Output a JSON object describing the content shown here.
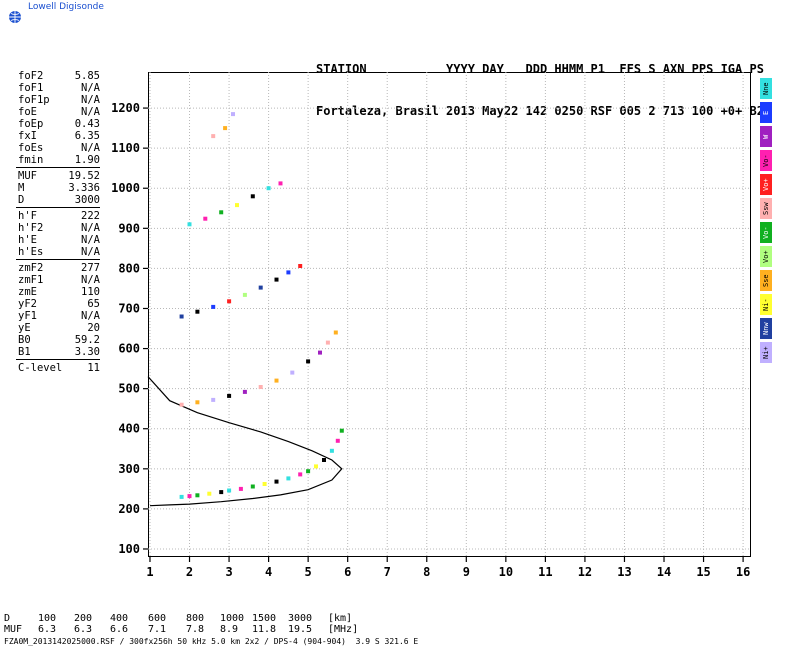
{
  "brand": {
    "name": "Lowell Digisonde",
    "icon": "globe-icon"
  },
  "header": {
    "labels": "STATION           YYYY DAY   DDD HHMM P1  FFS S AXN PPS IGA PS",
    "values": "Fortaleza, Brasil 2013 May22 142 0250 RSF 005 2 713 100 +0+ B2"
  },
  "params": [
    {
      "name": "foF2",
      "value": "5.85"
    },
    {
      "name": "foF1",
      "value": "N/A"
    },
    {
      "name": "foF1p",
      "value": "N/A"
    },
    {
      "name": "foE",
      "value": "N/A"
    },
    {
      "name": "foEp",
      "value": "0.43"
    },
    {
      "name": "fxI",
      "value": "6.35"
    },
    {
      "name": "foEs",
      "value": "N/A"
    },
    {
      "name": "fmin",
      "value": "1.90"
    },
    {
      "sep": true
    },
    {
      "name": "MUF",
      "value": "19.52"
    },
    {
      "name": "M",
      "value": "3.336"
    },
    {
      "name": "D",
      "value": "3000"
    },
    {
      "sep": true
    },
    {
      "name": "h'F",
      "value": "222"
    },
    {
      "name": "h'F2",
      "value": "N/A"
    },
    {
      "name": "h'E",
      "value": "N/A"
    },
    {
      "name": "h'Es",
      "value": "N/A"
    },
    {
      "sep": true
    },
    {
      "name": "zmF2",
      "value": "277"
    },
    {
      "name": "zmF1",
      "value": "N/A"
    },
    {
      "name": "zmE",
      "value": "110"
    },
    {
      "name": "yF2",
      "value": "65"
    },
    {
      "name": "yF1",
      "value": "N/A"
    },
    {
      "name": "yE",
      "value": "20"
    },
    {
      "name": "B0",
      "value": "59.2"
    },
    {
      "name": "B1",
      "value": "3.30"
    },
    {
      "sep": true
    },
    {
      "name": "C-level",
      "value": "11"
    }
  ],
  "legend": [
    {
      "label": "Nne",
      "color": "#33e0e0"
    },
    {
      "label": "E",
      "color": "#1c3cff"
    },
    {
      "label": "W",
      "color": "#a020c0"
    },
    {
      "label": "Vo-",
      "color": "#ff20b0"
    },
    {
      "label": "Vo+",
      "color": "#ff2020"
    },
    {
      "label": "Ssw",
      "color": "#ffb0b0"
    },
    {
      "label": "Vo-",
      "color": "#10b020"
    },
    {
      "label": "Vo+",
      "color": "#b0ff80"
    },
    {
      "label": "Sse",
      "color": "#ffb020"
    },
    {
      "label": "Ni-",
      "color": "#ffff30"
    },
    {
      "label": "Nnw",
      "color": "#2040a0"
    },
    {
      "label": "Ni+",
      "color": "#c0b0ff"
    }
  ],
  "footer": {
    "d_label": "D",
    "d_values": [
      "100",
      "200",
      "400",
      "600",
      "800",
      "1000",
      "1500",
      "3000",
      "[km]"
    ],
    "muf_label": "MUF",
    "muf_values": [
      "6.3",
      "6.3",
      "6.6",
      "7.1",
      "7.8",
      "8.9",
      "11.8",
      "19.5",
      "[MHz]"
    ],
    "file_line": "FZA0M_2013142025000.RSF / 300fx256h 50 kHz 5.0 km 2x2 / DPS-4 (904-904)  3.9 S 321.6 E"
  },
  "chart_data": {
    "type": "scatter",
    "title": "",
    "xlabel": "",
    "ylabel": "",
    "xlim": [
      0.95,
      16.2
    ],
    "ylim": [
      80,
      1290
    ],
    "x_ticks": [
      1,
      2,
      3,
      4,
      5,
      6,
      7,
      8,
      9,
      10,
      11,
      12,
      13,
      14,
      15,
      16
    ],
    "y_ticks": [
      100,
      200,
      300,
      400,
      500,
      600,
      700,
      800,
      900,
      1000,
      1100,
      1200
    ],
    "grid": true,
    "series": [
      {
        "values": [
          [
            1.8,
            230
          ],
          [
            2.0,
            232
          ],
          [
            2.2,
            234
          ],
          [
            2.5,
            238
          ],
          [
            2.8,
            242
          ],
          [
            3.0,
            246
          ],
          [
            3.3,
            250
          ],
          [
            3.6,
            256
          ],
          [
            3.9,
            262
          ],
          [
            4.2,
            268
          ],
          [
            4.5,
            276
          ],
          [
            4.8,
            286
          ],
          [
            5.0,
            294
          ],
          [
            5.2,
            306
          ],
          [
            5.4,
            322
          ],
          [
            5.6,
            345
          ],
          [
            5.75,
            370
          ],
          [
            5.85,
            395
          ]
        ]
      },
      {
        "values": [
          [
            1.8,
            460
          ],
          [
            2.2,
            466
          ],
          [
            2.6,
            472
          ],
          [
            3.0,
            482
          ],
          [
            3.4,
            492
          ],
          [
            3.8,
            504
          ],
          [
            4.2,
            520
          ],
          [
            4.6,
            540
          ],
          [
            5.0,
            568
          ],
          [
            5.3,
            590
          ],
          [
            5.5,
            615
          ],
          [
            5.7,
            640
          ]
        ]
      },
      {
        "values": [
          [
            1.8,
            680
          ],
          [
            2.2,
            692
          ],
          [
            2.6,
            704
          ],
          [
            3.0,
            718
          ],
          [
            3.4,
            734
          ],
          [
            3.8,
            752
          ],
          [
            4.2,
            772
          ],
          [
            4.5,
            790
          ],
          [
            4.8,
            806
          ]
        ]
      },
      {
        "values": [
          [
            2.0,
            910
          ],
          [
            2.4,
            924
          ],
          [
            2.8,
            940
          ],
          [
            3.2,
            958
          ],
          [
            3.6,
            980
          ],
          [
            4.0,
            1000
          ],
          [
            4.3,
            1012
          ]
        ]
      },
      {
        "values": [
          [
            2.6,
            1130
          ],
          [
            2.9,
            1150
          ],
          [
            3.1,
            1185
          ]
        ]
      }
    ],
    "model_curve": [
      [
        0.95,
        530
      ],
      [
        1.5,
        470
      ],
      [
        2.2,
        440
      ],
      [
        3.0,
        415
      ],
      [
        3.8,
        392
      ],
      [
        4.5,
        368
      ],
      [
        5.1,
        345
      ],
      [
        5.6,
        322
      ],
      [
        5.85,
        300
      ],
      [
        5.6,
        272
      ],
      [
        5.0,
        248
      ],
      [
        4.3,
        235
      ],
      [
        3.6,
        226
      ],
      [
        2.8,
        218
      ],
      [
        2.0,
        212
      ],
      [
        1.5,
        210
      ],
      [
        1.0,
        208
      ]
    ]
  }
}
